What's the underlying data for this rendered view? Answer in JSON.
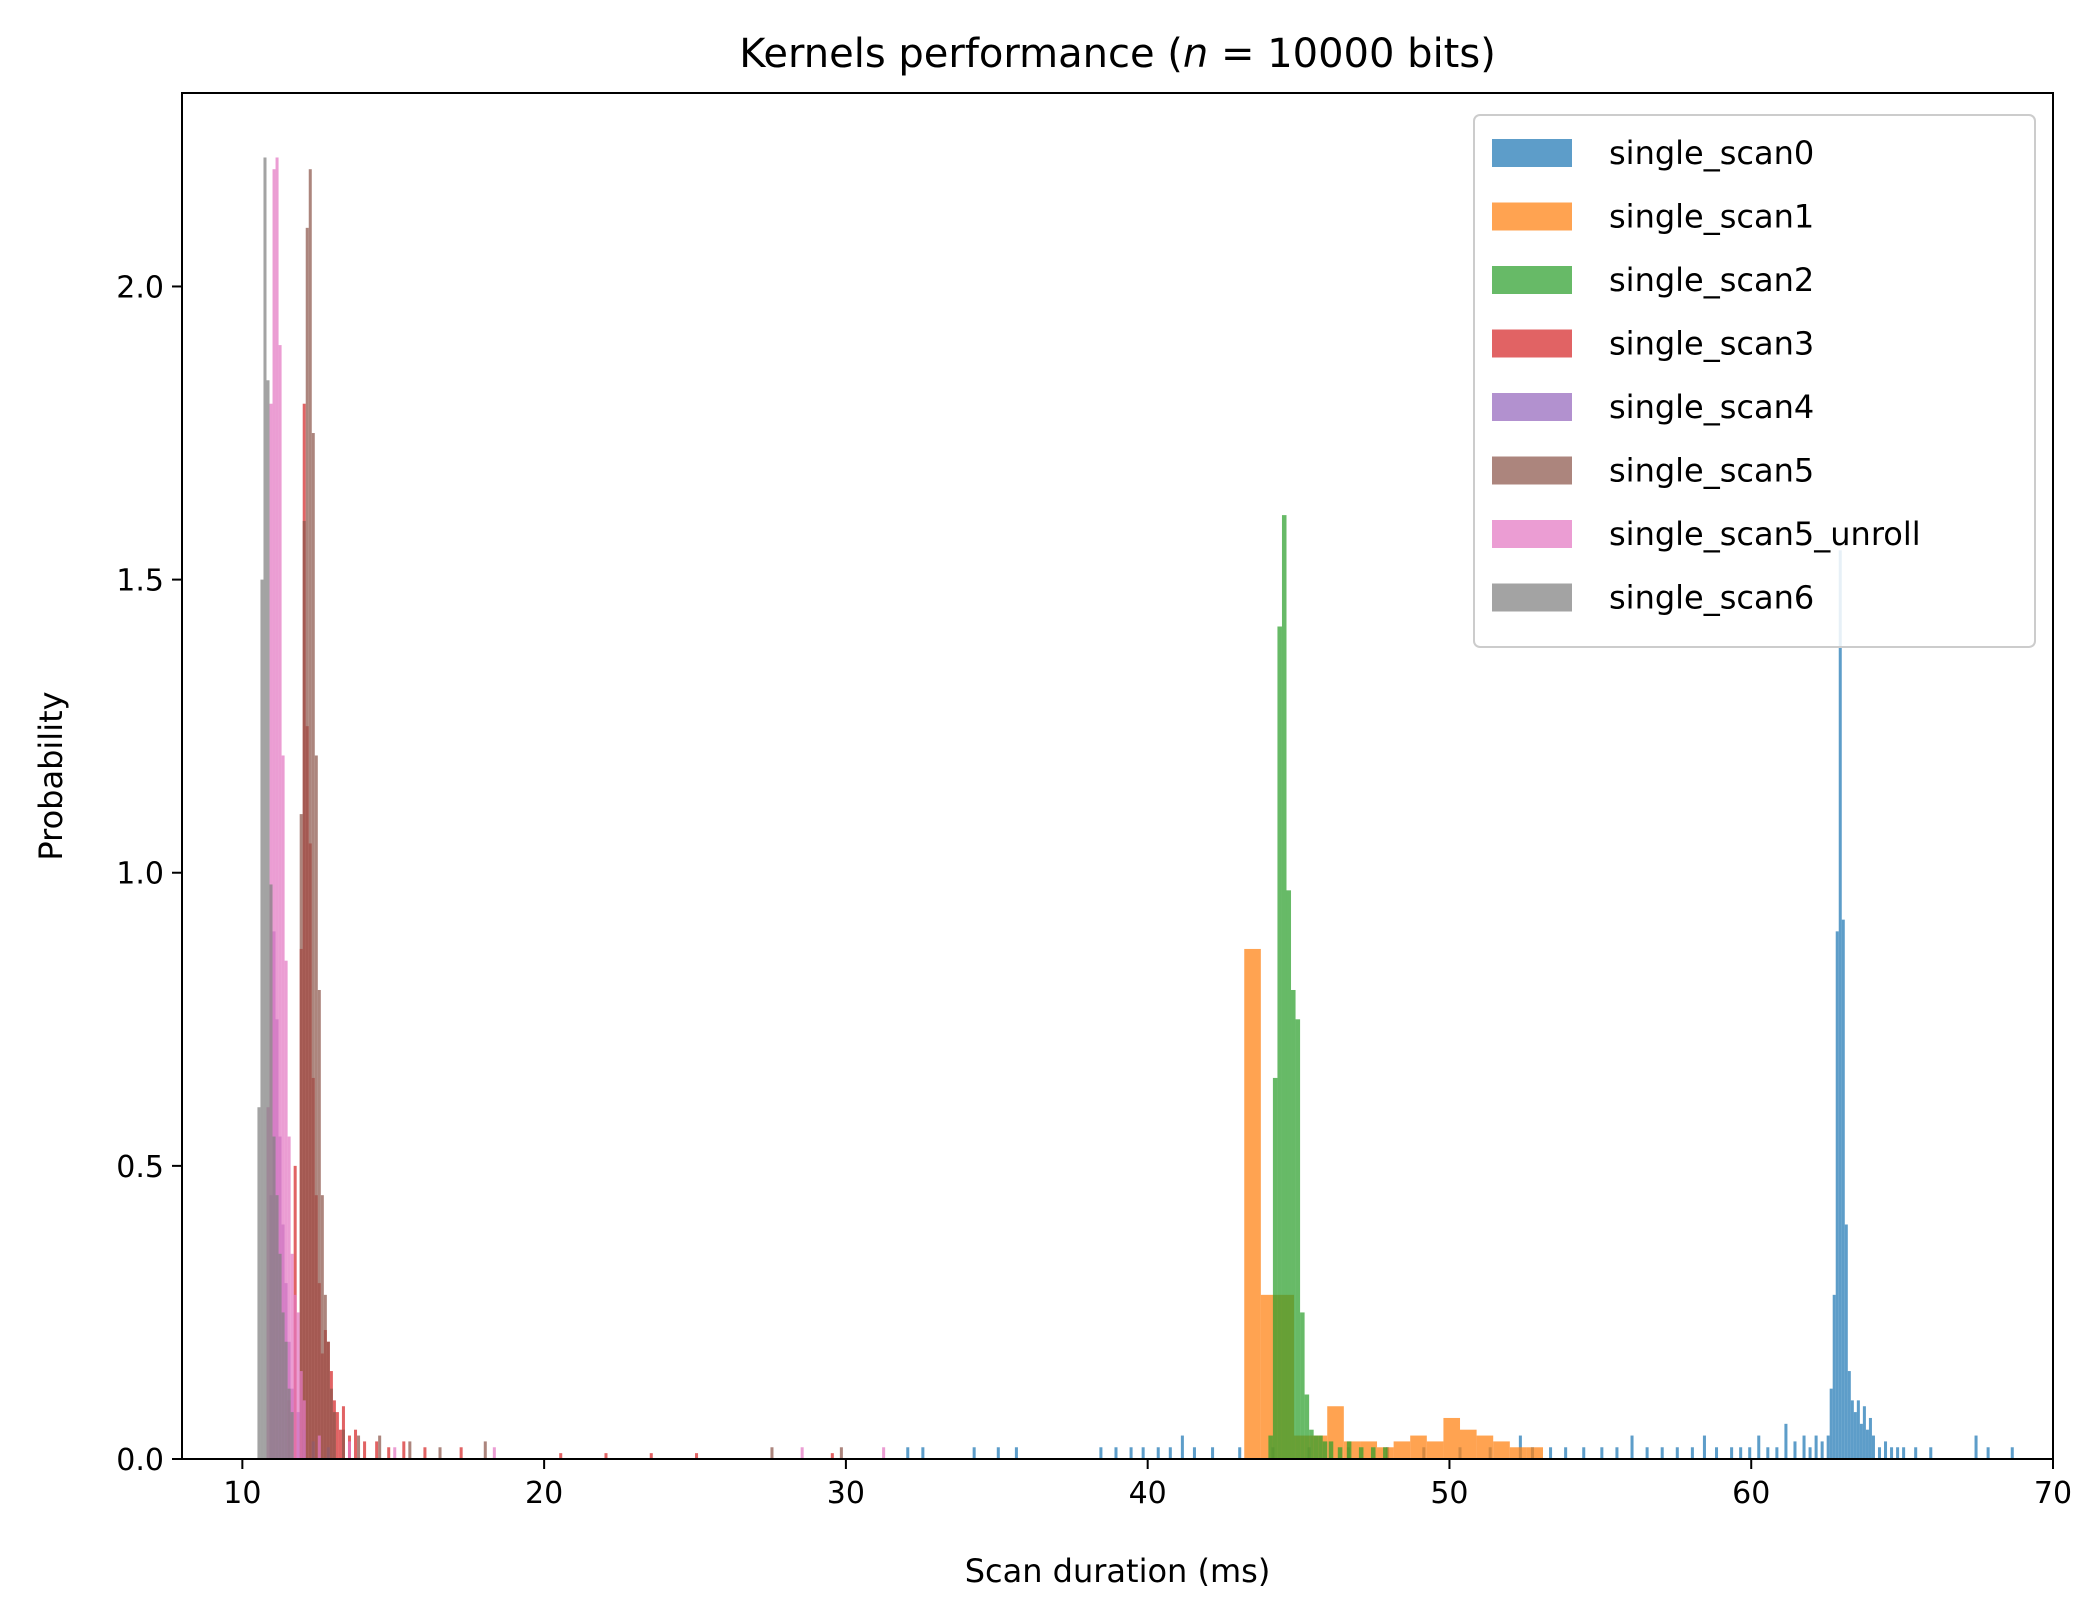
{
  "chart_data": {
    "type": "histogram",
    "title_prefix": "Kernels performance (",
    "title_var": "n",
    "title_suffix": " = 10000 bits)",
    "xlabel": "Scan duration (ms)",
    "ylabel": "Probability",
    "xlim": [
      8,
      70
    ],
    "ylim": [
      0,
      2.33
    ],
    "xticks": [
      10,
      20,
      30,
      40,
      50,
      60,
      70
    ],
    "yticks": [
      0.0,
      0.5,
      1.0,
      1.5,
      2.0
    ],
    "ytick_labels": [
      "0.0",
      "0.5",
      "1.0",
      "1.5",
      "2.0"
    ],
    "grid": false,
    "legend_position": "upper-right",
    "series": [
      {
        "name": "single_scan0",
        "color": "#1f77b4",
        "bins": [
          [
            38.4,
            0.02
          ],
          [
            38.9,
            0.02
          ],
          [
            39.4,
            0.02
          ],
          [
            39.8,
            0.02
          ],
          [
            40.3,
            0.02
          ],
          [
            40.7,
            0.02
          ],
          [
            41.1,
            0.04
          ],
          [
            41.5,
            0.02
          ],
          [
            42.1,
            0.02
          ],
          [
            43.0,
            0.02
          ],
          [
            44.1,
            0.02
          ],
          [
            45.3,
            0.02
          ],
          [
            46.6,
            0.02
          ],
          [
            47.9,
            0.02
          ],
          [
            49.1,
            0.02
          ],
          [
            50.3,
            0.02
          ],
          [
            51.3,
            0.02
          ],
          [
            52.3,
            0.04
          ],
          [
            52.7,
            0.02
          ],
          [
            53.3,
            0.02
          ],
          [
            53.8,
            0.02
          ],
          [
            54.4,
            0.02
          ],
          [
            55.0,
            0.02
          ],
          [
            55.5,
            0.02
          ],
          [
            56.0,
            0.04
          ],
          [
            56.5,
            0.02
          ],
          [
            57.0,
            0.02
          ],
          [
            57.5,
            0.02
          ],
          [
            58.0,
            0.02
          ],
          [
            58.4,
            0.04
          ],
          [
            58.8,
            0.02
          ],
          [
            59.3,
            0.02
          ],
          [
            59.6,
            0.02
          ],
          [
            59.9,
            0.02
          ],
          [
            60.2,
            0.04
          ],
          [
            60.5,
            0.02
          ],
          [
            60.8,
            0.02
          ],
          [
            61.1,
            0.06
          ],
          [
            61.4,
            0.03
          ],
          [
            61.7,
            0.04
          ],
          [
            61.9,
            0.02
          ],
          [
            62.1,
            0.04
          ],
          [
            62.3,
            0.03
          ],
          [
            62.5,
            0.04
          ],
          [
            62.6,
            0.12
          ],
          [
            62.7,
            0.28
          ],
          [
            62.8,
            0.9
          ],
          [
            62.9,
            1.55
          ],
          [
            63.0,
            0.92
          ],
          [
            63.1,
            0.4
          ],
          [
            63.2,
            0.15
          ],
          [
            63.3,
            0.1
          ],
          [
            63.4,
            0.08
          ],
          [
            63.5,
            0.1
          ],
          [
            63.6,
            0.06
          ],
          [
            63.7,
            0.09
          ],
          [
            63.8,
            0.05
          ],
          [
            63.9,
            0.07
          ],
          [
            64.0,
            0.04
          ],
          [
            64.2,
            0.02
          ],
          [
            64.4,
            0.03
          ],
          [
            64.6,
            0.02
          ],
          [
            64.8,
            0.02
          ],
          [
            65.0,
            0.02
          ],
          [
            65.4,
            0.02
          ],
          [
            65.9,
            0.02
          ],
          [
            67.4,
            0.04
          ],
          [
            67.8,
            0.02
          ],
          [
            68.6,
            0.02
          ],
          [
            32.0,
            0.02
          ],
          [
            32.5,
            0.02
          ],
          [
            34.2,
            0.02
          ],
          [
            35.0,
            0.02
          ],
          [
            35.6,
            0.02
          ]
        ],
        "bin_width": 0.1
      },
      {
        "name": "single_scan1",
        "color": "#ff7f0e",
        "bins": [
          [
            43.2,
            0.87
          ],
          [
            43.75,
            0.28
          ],
          [
            44.3,
            0.28
          ],
          [
            44.85,
            0.04
          ],
          [
            45.4,
            0.04
          ],
          [
            45.95,
            0.09
          ],
          [
            46.5,
            0.03
          ],
          [
            47.05,
            0.03
          ],
          [
            47.6,
            0.02
          ],
          [
            48.15,
            0.03
          ],
          [
            48.7,
            0.04
          ],
          [
            49.25,
            0.03
          ],
          [
            49.8,
            0.07
          ],
          [
            50.35,
            0.05
          ],
          [
            50.9,
            0.04
          ],
          [
            51.45,
            0.03
          ],
          [
            52.0,
            0.02
          ],
          [
            52.55,
            0.02
          ]
        ],
        "bin_width": 0.55
      },
      {
        "name": "single_scan2",
        "color": "#2ca02c",
        "bins": [
          [
            44.0,
            0.04
          ],
          [
            44.15,
            0.65
          ],
          [
            44.3,
            1.42
          ],
          [
            44.45,
            1.61
          ],
          [
            44.6,
            0.97
          ],
          [
            44.75,
            0.8
          ],
          [
            44.9,
            0.75
          ],
          [
            45.05,
            0.25
          ],
          [
            45.2,
            0.11
          ],
          [
            45.35,
            0.05
          ],
          [
            45.5,
            0.04
          ],
          [
            45.65,
            0.04
          ],
          [
            45.8,
            0.03
          ],
          [
            46.0,
            0.03
          ],
          [
            46.3,
            0.02
          ],
          [
            46.6,
            0.03
          ],
          [
            47.0,
            0.02
          ],
          [
            47.4,
            0.02
          ],
          [
            47.8,
            0.02
          ]
        ],
        "bin_width": 0.15
      },
      {
        "name": "single_scan3",
        "color": "#d62728",
        "bins": [
          [
            11.5,
            0.1
          ],
          [
            11.7,
            0.5
          ],
          [
            11.9,
            0.87
          ],
          [
            12.0,
            1.8
          ],
          [
            12.1,
            1.25
          ],
          [
            12.2,
            1.05
          ],
          [
            12.3,
            0.65
          ],
          [
            12.4,
            0.45
          ],
          [
            12.5,
            0.3
          ],
          [
            12.6,
            0.18
          ],
          [
            12.7,
            0.22
          ],
          [
            12.8,
            0.2
          ],
          [
            12.9,
            0.15
          ],
          [
            13.0,
            0.1
          ],
          [
            13.1,
            0.08
          ],
          [
            13.2,
            0.05
          ],
          [
            13.3,
            0.09
          ],
          [
            13.5,
            0.04
          ],
          [
            13.7,
            0.05
          ],
          [
            14.0,
            0.03
          ],
          [
            14.4,
            0.03
          ],
          [
            14.8,
            0.02
          ],
          [
            15.3,
            0.03
          ],
          [
            16.0,
            0.02
          ],
          [
            17.2,
            0.02
          ],
          [
            20.5,
            0.01
          ],
          [
            22.0,
            0.01
          ],
          [
            23.5,
            0.01
          ],
          [
            25.0,
            0.01
          ],
          [
            29.5,
            0.01
          ]
        ],
        "bin_width": 0.1
      },
      {
        "name": "single_scan4",
        "color": "#9467bd",
        "bins": [
          [
            10.9,
            0.45
          ],
          [
            11.0,
            0.9
          ],
          [
            11.1,
            0.75
          ],
          [
            11.2,
            0.55
          ],
          [
            11.3,
            0.4
          ],
          [
            11.4,
            0.3
          ],
          [
            11.5,
            0.2
          ],
          [
            11.6,
            0.12
          ],
          [
            11.8,
            0.08
          ],
          [
            12.0,
            0.05
          ],
          [
            12.3,
            0.03
          ],
          [
            12.8,
            0.02
          ]
        ],
        "bin_width": 0.1
      },
      {
        "name": "single_scan5",
        "color": "#8c564b",
        "bins": [
          [
            11.9,
            1.1
          ],
          [
            12.0,
            1.6
          ],
          [
            12.1,
            2.1
          ],
          [
            12.2,
            2.2
          ],
          [
            12.3,
            1.75
          ],
          [
            12.4,
            1.2
          ],
          [
            12.5,
            0.8
          ],
          [
            12.6,
            0.45
          ],
          [
            12.7,
            0.28
          ],
          [
            12.8,
            0.2
          ],
          [
            12.9,
            0.12
          ],
          [
            13.0,
            0.08
          ],
          [
            13.3,
            0.05
          ],
          [
            13.8,
            0.04
          ],
          [
            14.5,
            0.04
          ],
          [
            15.5,
            0.03
          ],
          [
            16.5,
            0.02
          ],
          [
            18.0,
            0.03
          ],
          [
            27.5,
            0.02
          ],
          [
            29.8,
            0.02
          ]
        ],
        "bin_width": 0.1
      },
      {
        "name": "single_scan5_unroll",
        "color": "#e377c2",
        "bins": [
          [
            10.8,
            0.6
          ],
          [
            10.9,
            1.8
          ],
          [
            11.0,
            2.2
          ],
          [
            11.1,
            2.22
          ],
          [
            11.2,
            1.9
          ],
          [
            11.3,
            1.2
          ],
          [
            11.4,
            0.85
          ],
          [
            11.5,
            0.55
          ],
          [
            11.6,
            0.35
          ],
          [
            11.7,
            0.28
          ],
          [
            11.8,
            0.25
          ],
          [
            11.9,
            0.15
          ],
          [
            12.0,
            0.1
          ],
          [
            12.5,
            0.04
          ],
          [
            13.5,
            0.03
          ],
          [
            15.0,
            0.02
          ],
          [
            18.3,
            0.02
          ],
          [
            28.5,
            0.02
          ],
          [
            31.2,
            0.02
          ]
        ],
        "bin_width": 0.1
      },
      {
        "name": "single_scan6",
        "color": "#7f7f7f",
        "bins": [
          [
            10.5,
            0.6
          ],
          [
            10.6,
            1.5
          ],
          [
            10.7,
            2.22
          ],
          [
            10.8,
            1.84
          ],
          [
            10.9,
            0.98
          ],
          [
            11.0,
            0.55
          ],
          [
            11.1,
            0.45
          ],
          [
            11.2,
            0.35
          ],
          [
            11.3,
            0.25
          ],
          [
            11.4,
            0.2
          ],
          [
            11.5,
            0.12
          ],
          [
            11.6,
            0.08
          ]
        ],
        "bin_width": 0.1
      }
    ]
  }
}
